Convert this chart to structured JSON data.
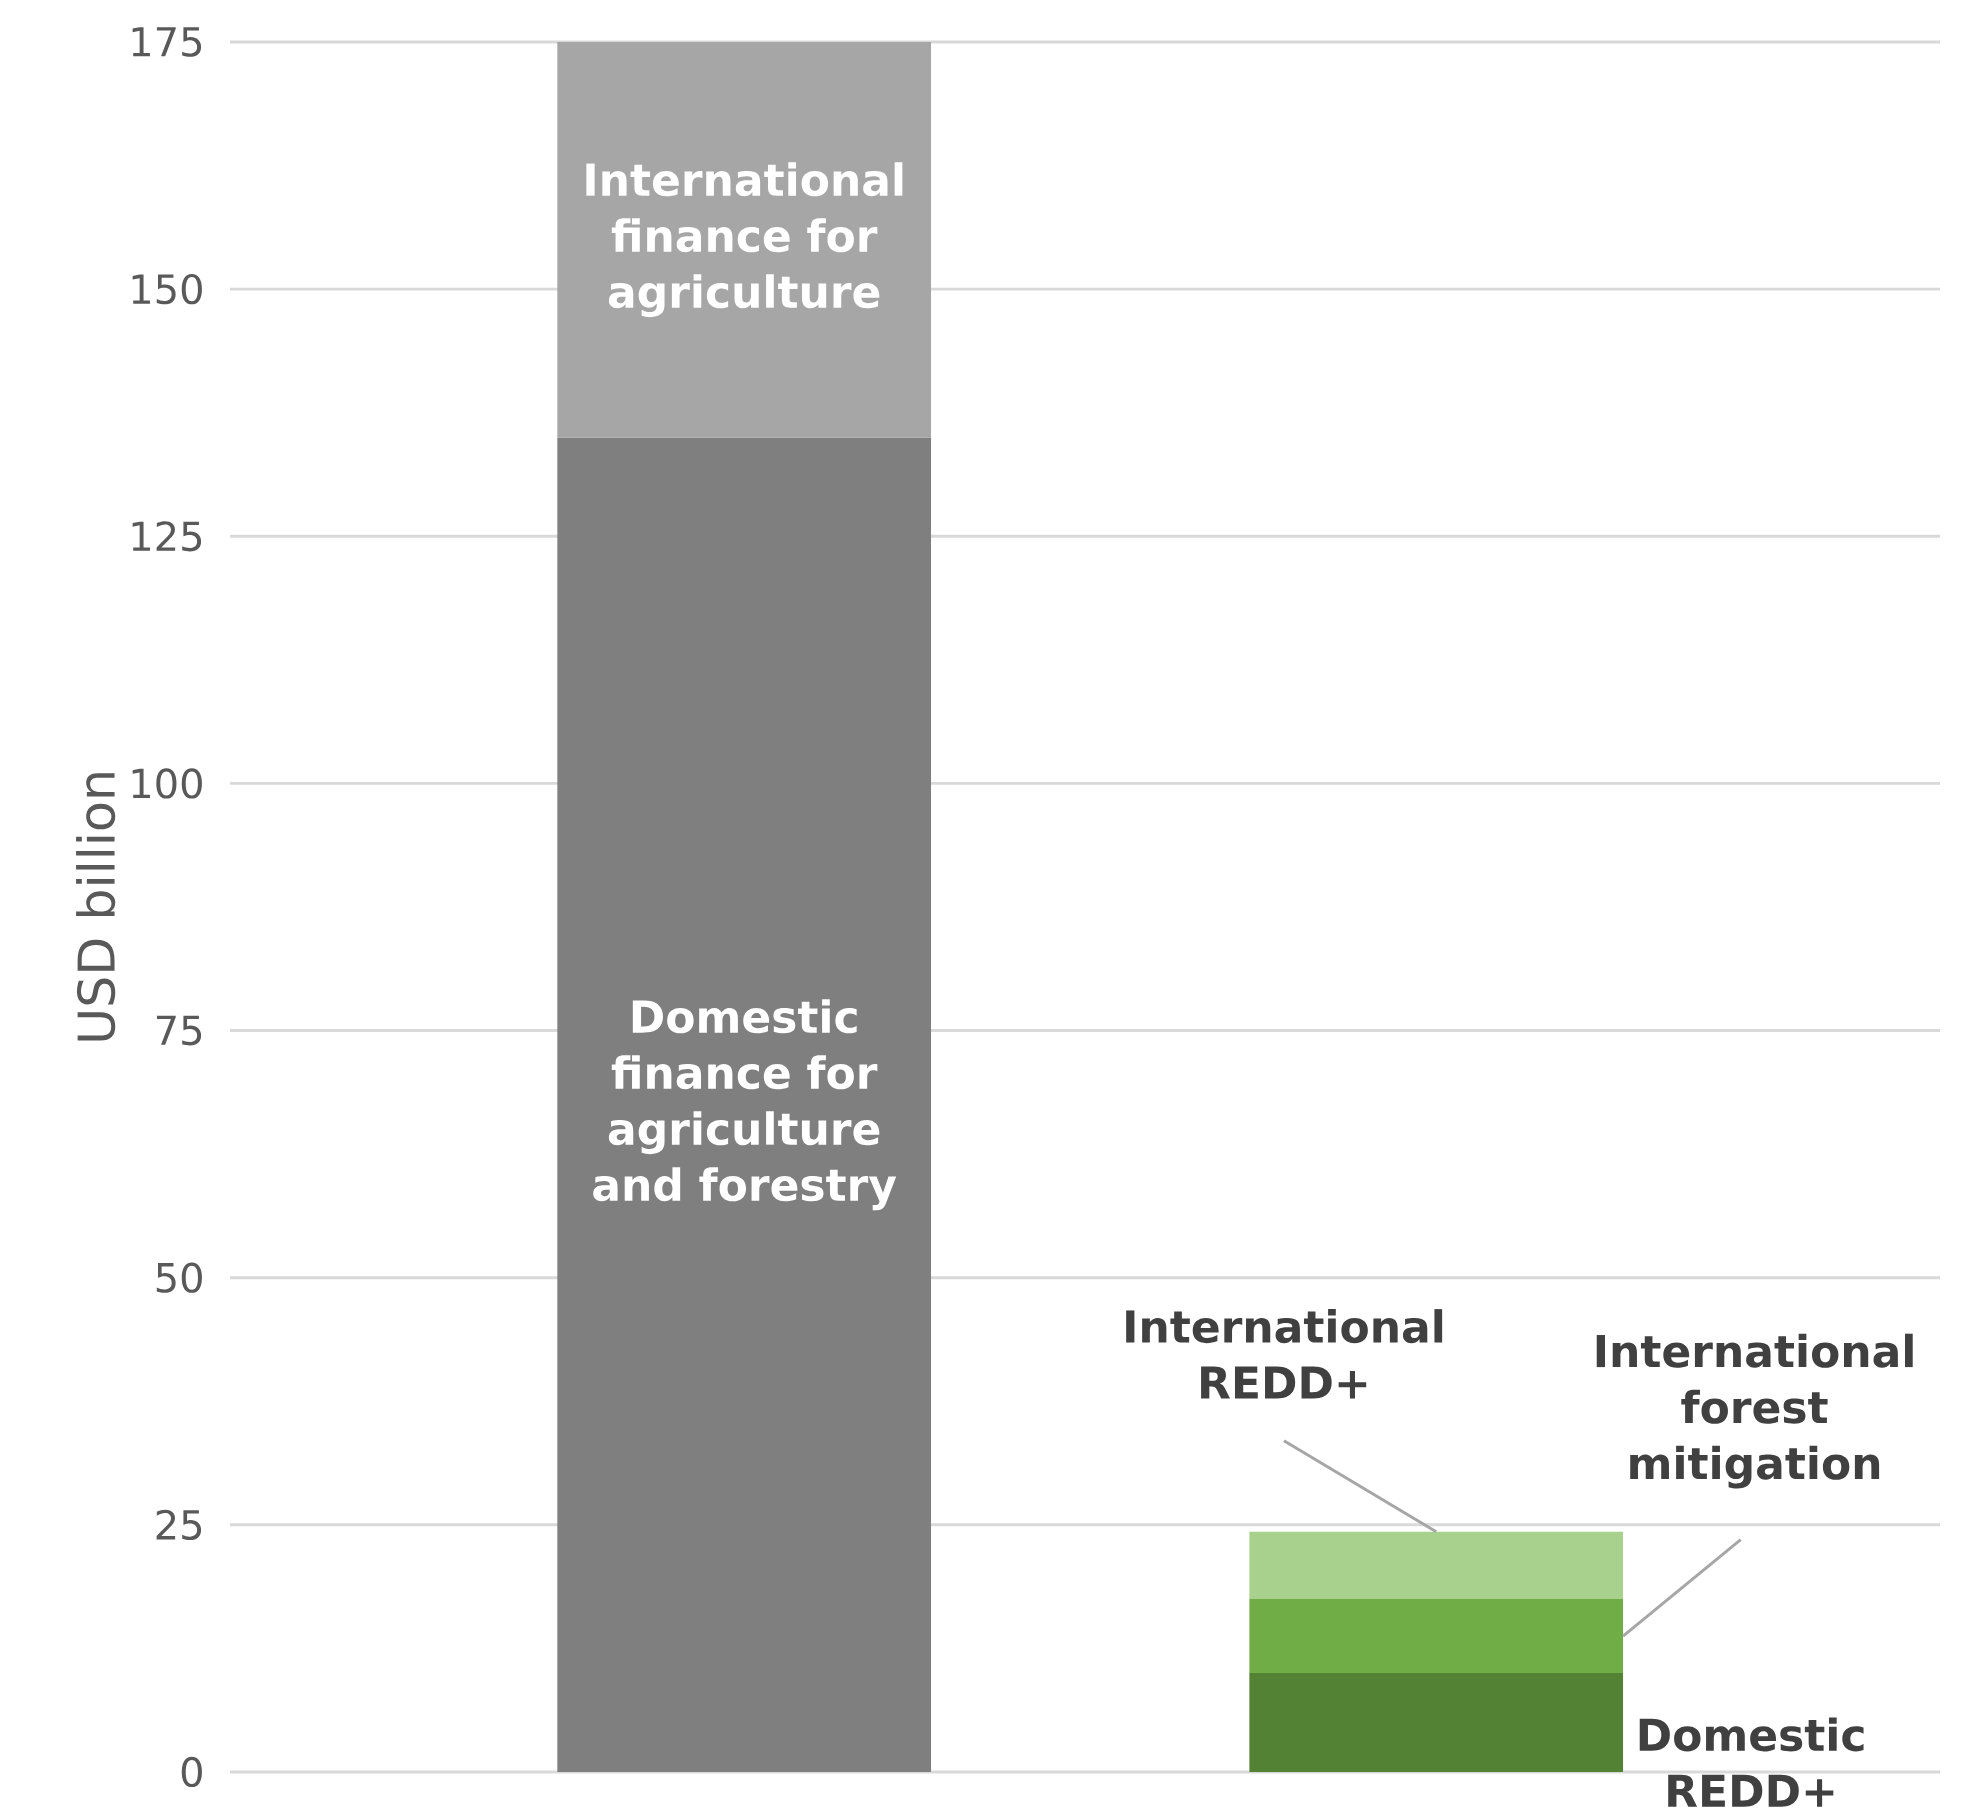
{
  "chart_data": {
    "type": "bar",
    "stacked": true,
    "ylabel": "USD billion",
    "categories": [
      null,
      null
    ],
    "series": [
      {
        "name": "Domestic finance for agriculture and forestry",
        "color": "#7f7f7f",
        "values": [
          135,
          null
        ]
      },
      {
        "name": "International finance for agriculture",
        "color": "#a6a6a6",
        "values": [
          40,
          null
        ]
      },
      {
        "name": "Domestic REDD+",
        "color": "#548235",
        "values": [
          null,
          10
        ]
      },
      {
        "name": "International forest mitigation",
        "color": "#70ad47",
        "values": [
          null,
          7.5
        ]
      },
      {
        "name": "International REDD+",
        "color": "#a9d18e",
        "values": [
          null,
          6.8
        ]
      }
    ],
    "ylim": [
      0,
      175
    ],
    "yticks": [
      0,
      25,
      50,
      75,
      100,
      125,
      150,
      175
    ],
    "grid": "y",
    "tick_labels": "y"
  }
}
